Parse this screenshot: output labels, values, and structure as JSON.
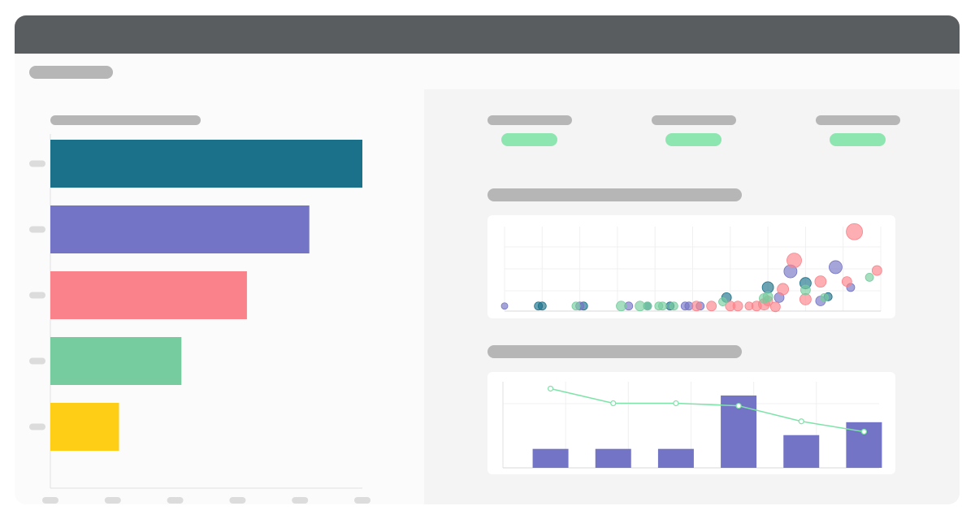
{
  "window": {
    "title": ""
  },
  "bar_chart": {
    "title": "",
    "colors": [
      "#1c718a",
      "#7474c6",
      "#fa828a",
      "#76cc9e",
      "#fecd16"
    ]
  },
  "kpis": [
    {
      "label": "",
      "value": ""
    },
    {
      "label": "",
      "value": ""
    },
    {
      "label": "",
      "value": ""
    }
  ],
  "scatter_chart": {
    "title": ""
  },
  "combo_chart": {
    "title": ""
  },
  "chart_data": [
    {
      "type": "bar",
      "orientation": "horizontal",
      "title": "",
      "categories": [
        "",
        "",
        "",
        "",
        ""
      ],
      "values": [
        100,
        83,
        63,
        42,
        22
      ],
      "xlim": [
        0,
        100
      ],
      "colors": [
        "#1c718a",
        "#7474c6",
        "#fa828a",
        "#76cc9e",
        "#fecd16"
      ],
      "grid": false
    },
    {
      "type": "scatter",
      "title": "",
      "xlim": [
        0,
        100
      ],
      "ylim": [
        0,
        100
      ],
      "grid": true,
      "series": [
        {
          "color": "#1c718a",
          "points": [
            [
              9,
              6,
              5
            ],
            [
              10,
              6,
              5
            ],
            [
              21,
              6,
              5
            ],
            [
              38,
              6,
              5
            ],
            [
              44,
              6,
              5
            ],
            [
              59,
              16,
              6
            ],
            [
              70,
              28,
              7
            ],
            [
              80,
              33,
              7
            ],
            [
              86,
              17,
              5
            ]
          ]
        },
        {
          "color": "#7474c6",
          "points": [
            [
              0,
              6,
              4
            ],
            [
              20,
              6,
              5
            ],
            [
              33,
              6,
              5
            ],
            [
              48,
              6,
              5
            ],
            [
              49,
              6,
              5
            ],
            [
              52,
              6,
              5
            ],
            [
              73,
              16,
              6
            ],
            [
              76,
              47,
              8
            ],
            [
              84,
              12,
              6
            ],
            [
              88,
              52,
              8
            ],
            [
              92,
              28,
              5
            ]
          ]
        },
        {
          "color": "#fa828a",
          "points": [
            [
              51,
              6,
              6
            ],
            [
              55,
              6,
              6
            ],
            [
              60,
              6,
              6
            ],
            [
              62,
              6,
              6
            ],
            [
              65,
              6,
              5
            ],
            [
              67,
              6,
              6
            ],
            [
              69,
              8,
              7
            ],
            [
              70,
              12,
              6
            ],
            [
              72,
              5,
              6
            ],
            [
              74,
              26,
              7
            ],
            [
              77,
              60,
              9
            ],
            [
              80,
              14,
              7
            ],
            [
              84,
              35,
              7
            ],
            [
              93,
              94,
              10
            ],
            [
              91,
              35,
              6
            ],
            [
              99,
              48,
              6
            ]
          ]
        },
        {
          "color": "#76cc9e",
          "points": [
            [
              19,
              6,
              5
            ],
            [
              31,
              6,
              6
            ],
            [
              36,
              6,
              6
            ],
            [
              38,
              6,
              5
            ],
            [
              41,
              6,
              5
            ],
            [
              42,
              6,
              5
            ],
            [
              45,
              6,
              5
            ],
            [
              58,
              11,
              5
            ],
            [
              69,
              15,
              6
            ],
            [
              70,
              17,
              6
            ],
            [
              80,
              25,
              6
            ],
            [
              85,
              16,
              5
            ],
            [
              97,
              40,
              5
            ]
          ]
        }
      ]
    },
    {
      "type": "bar+line",
      "title": "",
      "categories": [
        "",
        "",
        "",
        "",
        "",
        ""
      ],
      "ylim": [
        0,
        100
      ],
      "grid": true,
      "series": [
        {
          "type": "bar",
          "color": "#7474c6",
          "values": [
            22,
            22,
            22,
            84,
            38,
            53
          ]
        },
        {
          "type": "line",
          "color": "#7de3a8",
          "values": [
            92,
            75,
            75,
            72,
            54,
            42
          ]
        }
      ]
    }
  ]
}
